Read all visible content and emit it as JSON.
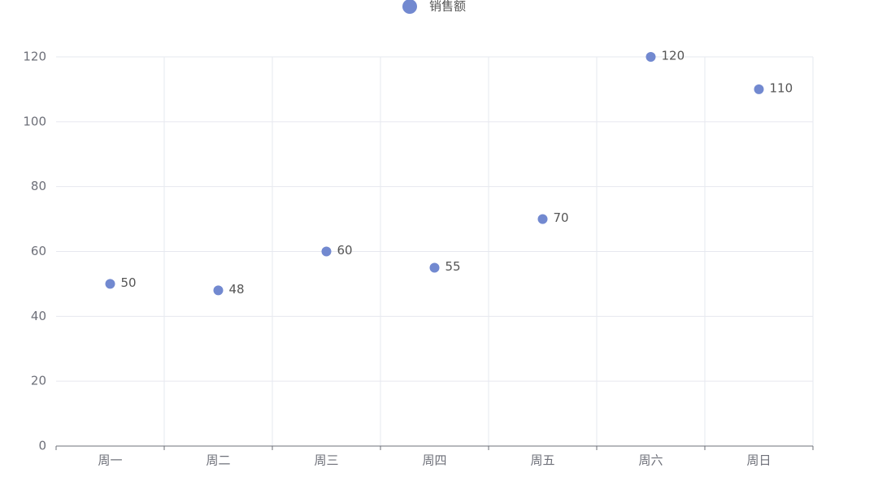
{
  "chart_data": {
    "type": "scatter",
    "categories": [
      "周一",
      "周二",
      "周三",
      "周四",
      "周五",
      "周六",
      "周日"
    ],
    "series": [
      {
        "name": "销售额",
        "color": "#7289d0",
        "values": [
          50,
          48,
          60,
          55,
          70,
          120,
          110
        ]
      }
    ],
    "ylim": [
      0,
      120
    ],
    "yticks": [
      0,
      20,
      40,
      60,
      80,
      100,
      120
    ],
    "grid": true,
    "legend": "top"
  }
}
